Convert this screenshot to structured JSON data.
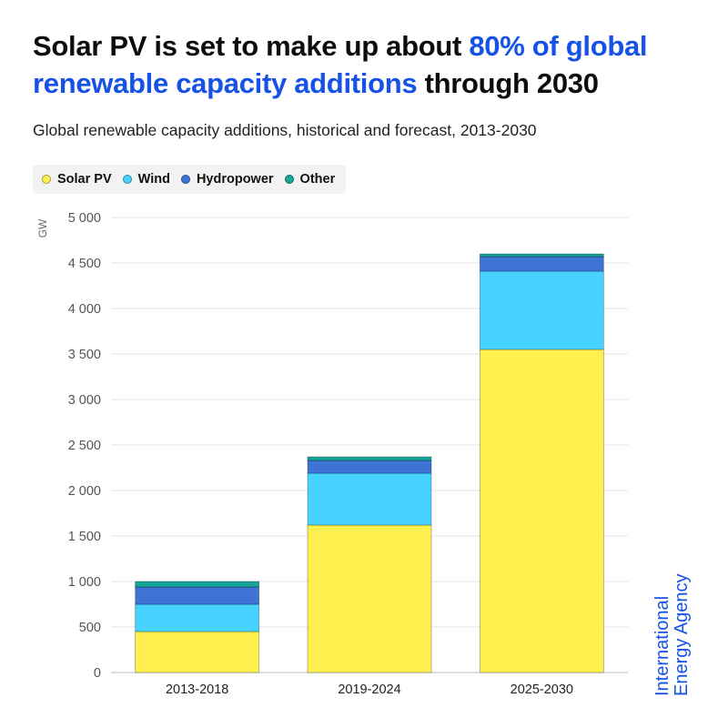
{
  "title": {
    "part1": "Solar PV is set to make up about ",
    "highlight": "80% of global renewable capacity additions",
    "part2": " through 2030"
  },
  "subtitle": "Global renewable capacity additions, historical and forecast, 2013-2030",
  "logo": {
    "line1": "International",
    "line2": "Energy Agency"
  },
  "colors": {
    "accent": "#1652e6"
  },
  "chart_data": {
    "type": "bar",
    "stacked": true,
    "title": "Solar PV is set to make up about 80% of global renewable capacity additions through 2030",
    "subtitle": "Global renewable capacity additions, historical and forecast, 2013-2030",
    "xlabel": "",
    "ylabel": "GW",
    "ylim": [
      0,
      5000
    ],
    "yticks": [
      0,
      500,
      1000,
      1500,
      2000,
      2500,
      3000,
      3500,
      4000,
      4500,
      5000
    ],
    "ytick_labels": [
      "0",
      "500",
      "1 000",
      "1 500",
      "2 000",
      "2 500",
      "3 000",
      "3 500",
      "4 000",
      "4 500",
      "5 000"
    ],
    "grid": true,
    "legend_position": "top-left",
    "categories": [
      "2013-2018",
      "2019-2024",
      "2025-2030"
    ],
    "series": [
      {
        "name": "Solar PV",
        "color": "#fff050",
        "values": [
          450,
          1620,
          3550
        ]
      },
      {
        "name": "Wind",
        "color": "#47d3ff",
        "values": [
          300,
          570,
          860
        ]
      },
      {
        "name": "Hydropower",
        "color": "#3f74d6",
        "values": [
          190,
          140,
          160
        ]
      },
      {
        "name": "Other",
        "color": "#16a596",
        "values": [
          60,
          40,
          30
        ]
      }
    ]
  }
}
